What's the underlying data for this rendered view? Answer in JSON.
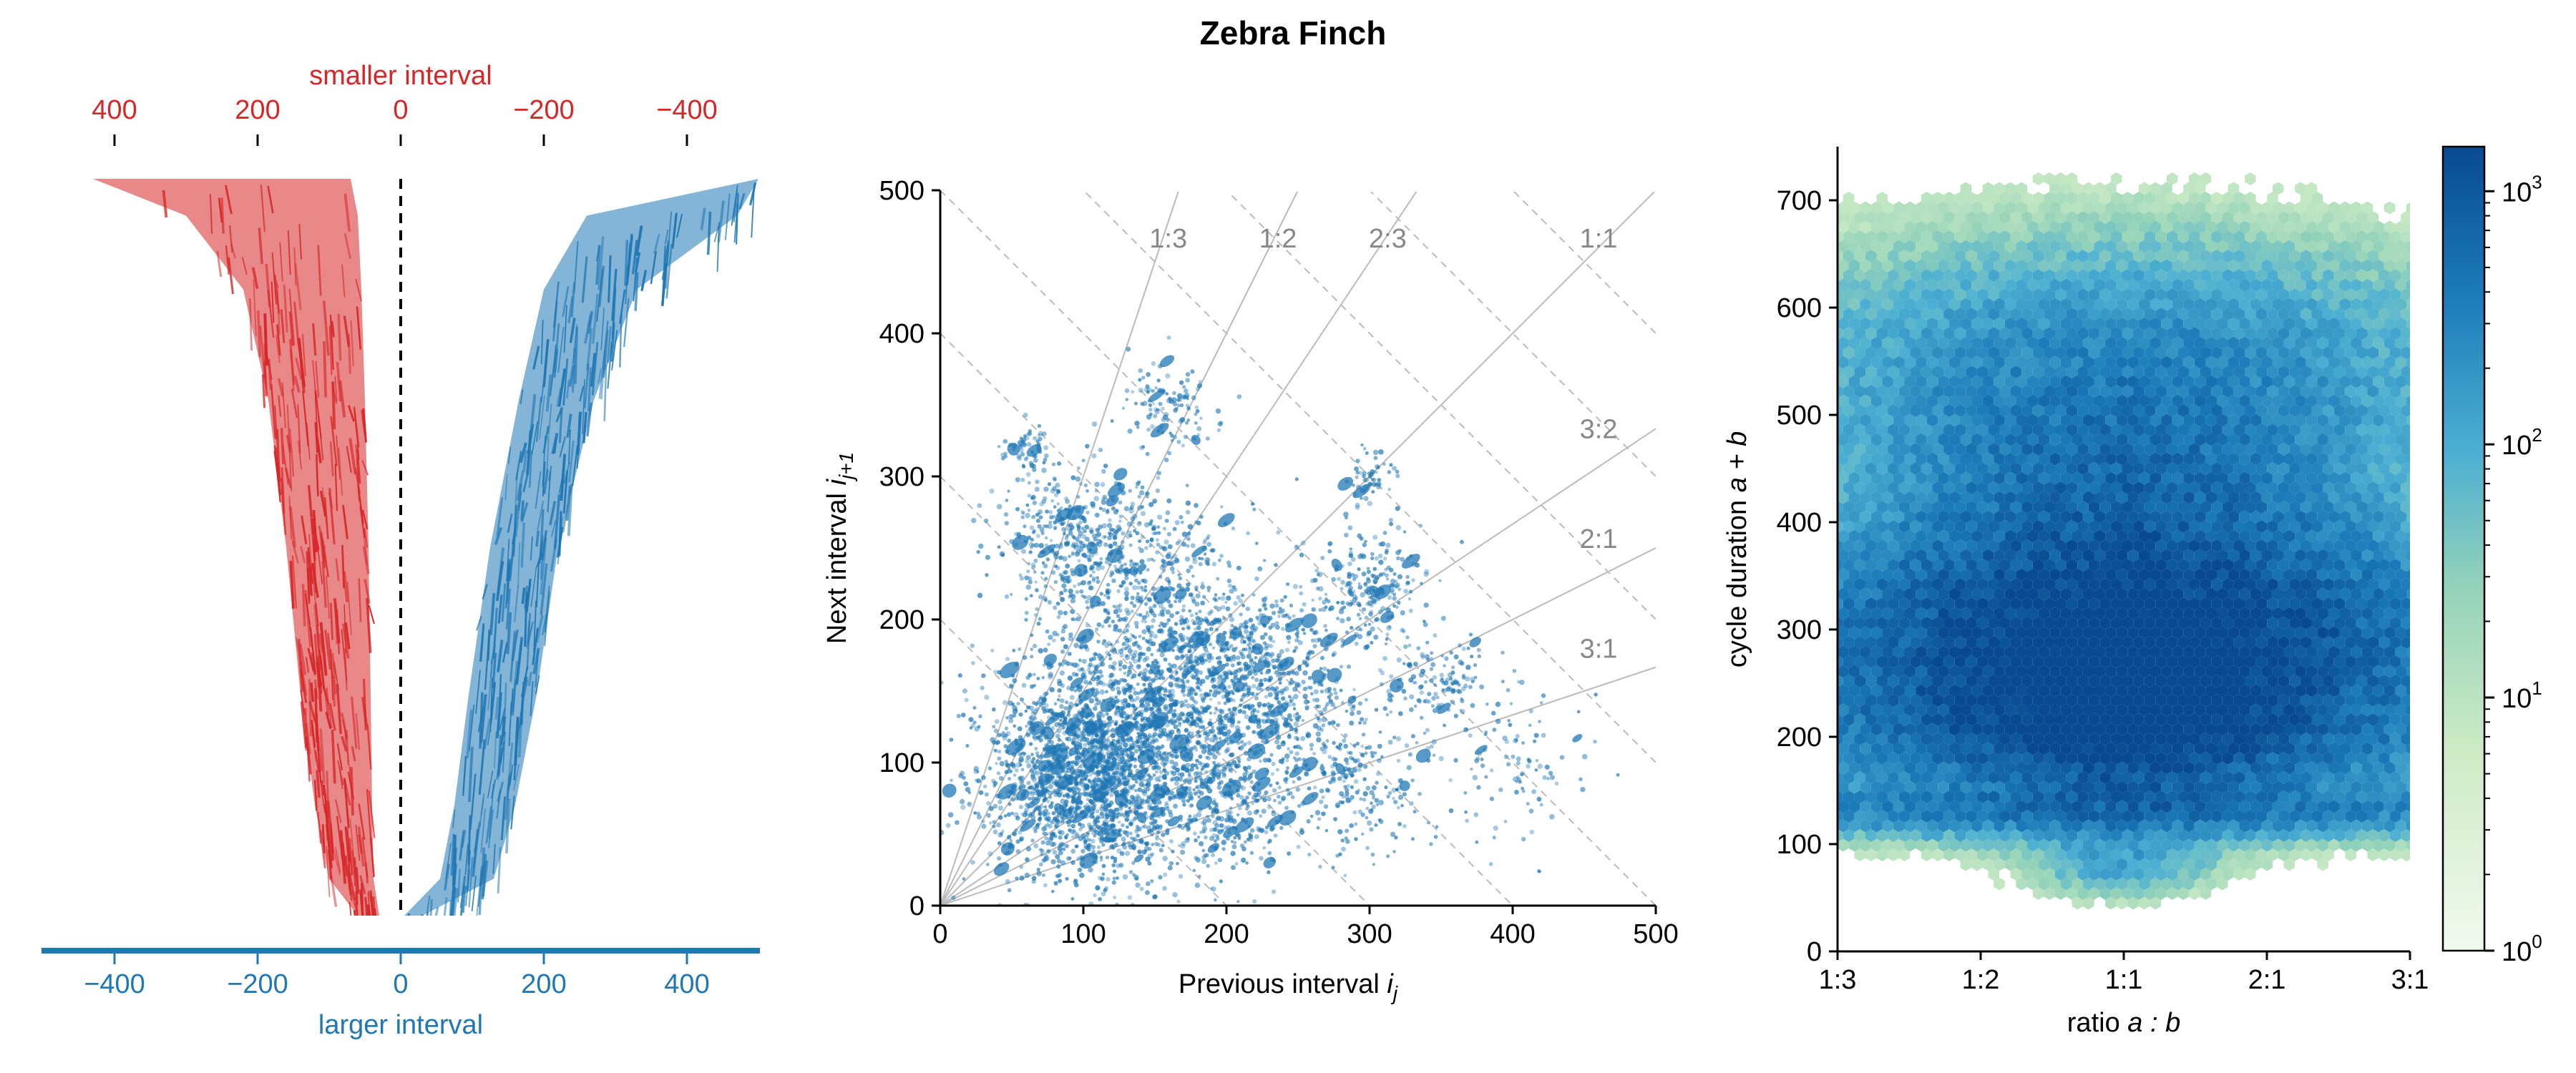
{
  "figure": {
    "title": "Zebra Finch"
  },
  "colors": {
    "red": "#d62728",
    "blue": "#1f77b4",
    "grid": "#bbbbbb",
    "cmap_low": "#f1faee",
    "cmap_mid": "#4cafd2",
    "cmap_high": "#084a91"
  },
  "chart_data": [
    {
      "type": "area",
      "panel": "interval-distribution",
      "top_axis": {
        "label": "smaller interval",
        "ticks": [
          "400",
          "200",
          "0",
          "−200",
          "−400"
        ],
        "color": "red"
      },
      "bottom_axis": {
        "label": "larger interval",
        "ticks": [
          "−400",
          "−200",
          "0",
          "200",
          "400"
        ],
        "color": "blue"
      },
      "xlim": [
        -500,
        500
      ],
      "series": [
        {
          "name": "smaller interval",
          "color": "red",
          "profile_rank": [
            0,
            0.05,
            0.15,
            0.3,
            0.5,
            0.7,
            0.85,
            0.95,
            1.0
          ],
          "inner": [
            -70,
            -60,
            -55,
            -50,
            -45,
            -42,
            -40,
            -38,
            -30
          ],
          "outer": [
            -430,
            -300,
            -220,
            -185,
            -160,
            -140,
            -120,
            -100,
            -60
          ]
        },
        {
          "name": "larger interval",
          "color": "blue",
          "profile_rank": [
            0,
            0.05,
            0.15,
            0.3,
            0.5,
            0.7,
            0.85,
            0.95,
            1.0
          ],
          "inner": [
            500,
            260,
            200,
            165,
            125,
            95,
            75,
            55,
            5
          ],
          "outer": [
            500,
            470,
            330,
            270,
            220,
            190,
            160,
            130,
            30
          ]
        }
      ]
    },
    {
      "type": "scatter",
      "panel": "interval-scatter",
      "xlabel": "Previous interval",
      "xlabel_sub": "j",
      "ylabel": "Next interval",
      "ylabel_sub": "j+1",
      "xlim": [
        0,
        500
      ],
      "ylim": [
        0,
        500
      ],
      "xticks": [
        0,
        100,
        200,
        300,
        400,
        500
      ],
      "yticks": [
        0,
        100,
        200,
        300,
        400,
        500
      ],
      "ratio_lines": [
        {
          "label": "1:3",
          "slope": 3
        },
        {
          "label": "1:2",
          "slope": 2
        },
        {
          "label": "2:3",
          "slope": 1.5
        },
        {
          "label": "1:1",
          "slope": 1
        },
        {
          "label": "3:2",
          "slope": 0.6667
        },
        {
          "label": "2:1",
          "slope": 0.5
        },
        {
          "label": "3:1",
          "slope": 0.3333
        }
      ],
      "clusters": [
        {
          "x": 120,
          "y": 110,
          "spread": 45,
          "weight": 30
        },
        {
          "x": 100,
          "y": 80,
          "spread": 30,
          "weight": 15
        },
        {
          "x": 180,
          "y": 140,
          "spread": 40,
          "weight": 14
        },
        {
          "x": 230,
          "y": 160,
          "spread": 30,
          "weight": 8
        },
        {
          "x": 150,
          "y": 230,
          "spread": 35,
          "weight": 8
        },
        {
          "x": 90,
          "y": 260,
          "spread": 25,
          "weight": 6
        },
        {
          "x": 300,
          "y": 220,
          "spread": 20,
          "weight": 4
        },
        {
          "x": 280,
          "y": 90,
          "spread": 30,
          "weight": 5
        },
        {
          "x": 350,
          "y": 160,
          "spread": 15,
          "weight": 2
        },
        {
          "x": 160,
          "y": 350,
          "spread": 15,
          "weight": 2
        },
        {
          "x": 300,
          "y": 300,
          "spread": 10,
          "weight": 1
        },
        {
          "x": 60,
          "y": 320,
          "spread": 8,
          "weight": 1
        },
        {
          "x": 200,
          "y": 60,
          "spread": 20,
          "weight": 3
        },
        {
          "x": 400,
          "y": 100,
          "spread": 30,
          "weight": 2
        }
      ]
    },
    {
      "type": "heatmap",
      "panel": "ratio-hexbin",
      "xlabel": "ratio",
      "xlabel_math": "a : b",
      "ylabel": "cycle duration",
      "ylabel_math": "a + b",
      "xticks": [
        "1:3",
        "1:2",
        "1:1",
        "2:1",
        "3:1"
      ],
      "yticks": [
        0,
        100,
        200,
        300,
        400,
        500,
        600,
        700
      ],
      "ylim": [
        0,
        750
      ],
      "colorbar": {
        "scale": "log",
        "range": [
          1,
          1500
        ],
        "ticks": [
          {
            "base": "10",
            "exp": "0"
          },
          {
            "base": "10",
            "exp": "1"
          },
          {
            "base": "10",
            "exp": "2"
          },
          {
            "base": "10",
            "exp": "3"
          }
        ]
      },
      "hotspots": [
        {
          "r": 0.0,
          "d": 240,
          "sx": 0.35,
          "sy": 60,
          "w": 1.0
        },
        {
          "r": 0.0,
          "d": 400,
          "sx": 0.55,
          "sy": 90,
          "w": 0.55
        },
        {
          "r": -0.6,
          "d": 300,
          "sx": 0.5,
          "sy": 60,
          "w": 0.5
        },
        {
          "r": 0.6,
          "d": 300,
          "sx": 0.5,
          "sy": 60,
          "w": 0.5
        },
        {
          "r": 0.0,
          "d": 550,
          "sx": 0.9,
          "sy": 80,
          "w": 0.3
        },
        {
          "r": 0.0,
          "d": 200,
          "sx": 1.4,
          "sy": 50,
          "w": 0.4
        },
        {
          "r": 0.0,
          "d": 130,
          "sx": 1.5,
          "sy": 15,
          "w": 0.3
        },
        {
          "r": 0.0,
          "d": 80,
          "sx": 0.2,
          "sy": 20,
          "w": 0.2
        }
      ]
    }
  ]
}
